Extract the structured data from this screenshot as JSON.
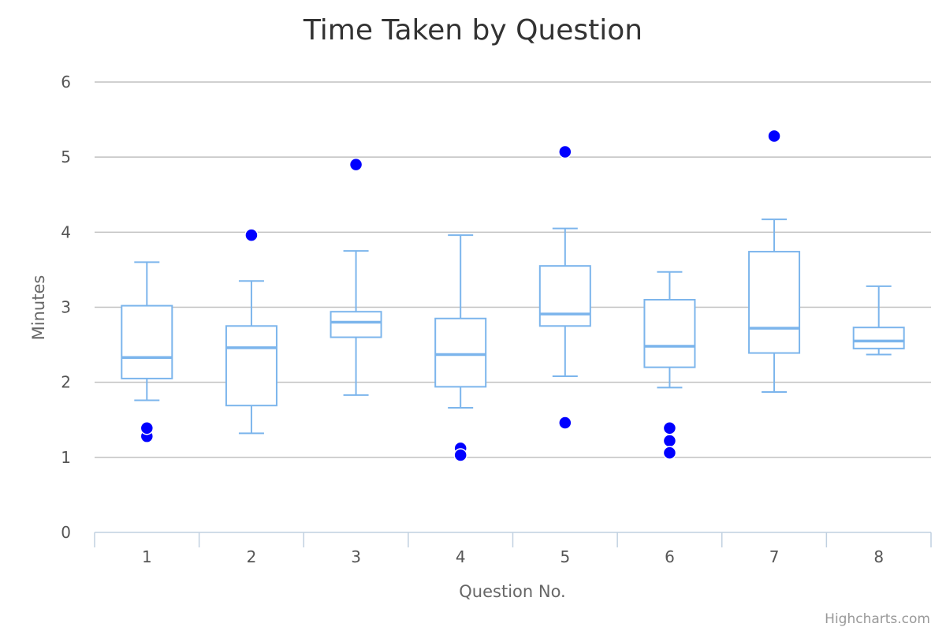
{
  "chart_data": {
    "type": "boxplot",
    "title": "Time Taken by Question",
    "xlabel": "Question No.",
    "ylabel": "Minutes",
    "credits": "Highcharts.com",
    "ylim": [
      0,
      6
    ],
    "yticks": [
      "0",
      "1",
      "2",
      "3",
      "4",
      "5",
      "6"
    ],
    "grid": true,
    "categories": [
      "1",
      "2",
      "3",
      "4",
      "5",
      "6",
      "7",
      "8"
    ],
    "boxes": [
      {
        "low": 1.76,
        "q1": 2.05,
        "median": 2.33,
        "q3": 3.02,
        "high": 3.6
      },
      {
        "low": 1.32,
        "q1": 1.69,
        "median": 2.46,
        "q3": 2.75,
        "high": 3.35
      },
      {
        "low": 1.83,
        "q1": 2.6,
        "median": 2.8,
        "q3": 2.94,
        "high": 3.75
      },
      {
        "low": 1.66,
        "q1": 1.94,
        "median": 2.37,
        "q3": 2.85,
        "high": 3.96
      },
      {
        "low": 2.08,
        "q1": 2.75,
        "median": 2.91,
        "q3": 3.55,
        "high": 4.05
      },
      {
        "low": 1.93,
        "q1": 2.2,
        "median": 2.48,
        "q3": 3.1,
        "high": 3.47
      },
      {
        "low": 1.87,
        "q1": 2.39,
        "median": 2.72,
        "q3": 3.74,
        "high": 4.17
      },
      {
        "low": 2.37,
        "q1": 2.45,
        "median": 2.55,
        "q3": 2.73,
        "high": 3.28
      }
    ],
    "outliers": [
      {
        "x": 0,
        "y": 1.28
      },
      {
        "x": 0,
        "y": 1.39
      },
      {
        "x": 1,
        "y": 3.96
      },
      {
        "x": 2,
        "y": 4.9
      },
      {
        "x": 3,
        "y": 1.12
      },
      {
        "x": 3,
        "y": 1.03
      },
      {
        "x": 4,
        "y": 5.07
      },
      {
        "x": 4,
        "y": 1.46
      },
      {
        "x": 5,
        "y": 1.39
      },
      {
        "x": 5,
        "y": 1.22
      },
      {
        "x": 5,
        "y": 1.06
      },
      {
        "x": 6,
        "y": 5.28
      }
    ],
    "colors": {
      "box": "#7cb5ec",
      "outlier": "#0000ff"
    }
  }
}
